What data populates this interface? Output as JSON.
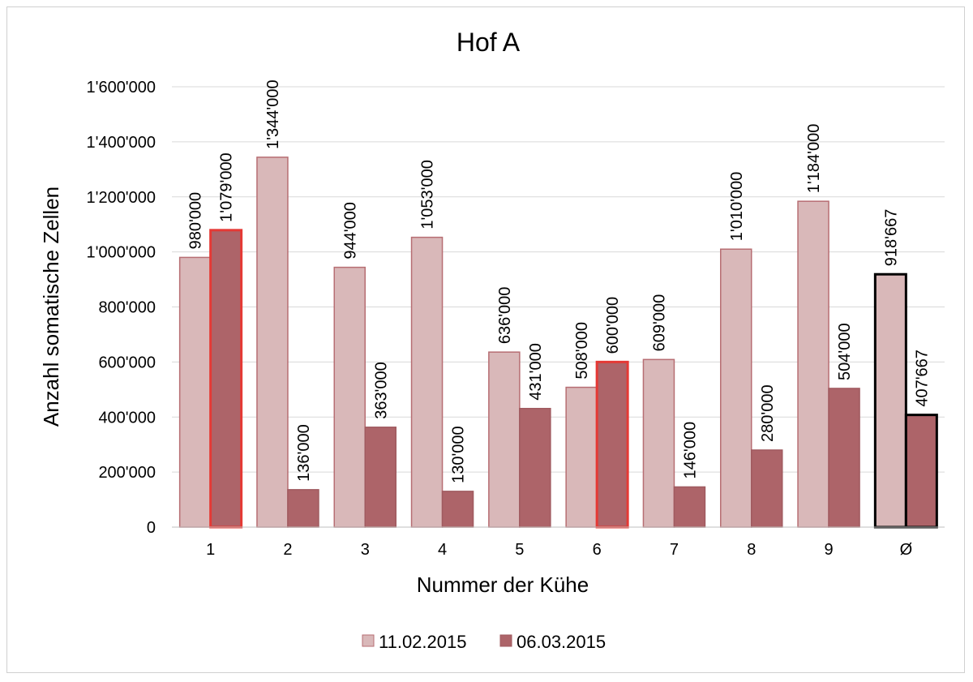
{
  "chart_data": {
    "type": "bar",
    "title": "Hof A",
    "xlabel": "Nummer der Kühe",
    "ylabel": "Anzahl somatische Zellen",
    "categories": [
      "1",
      "2",
      "3",
      "4",
      "5",
      "6",
      "7",
      "8",
      "9",
      "Ø"
    ],
    "series": [
      {
        "name": "11.02.2015",
        "color": "#d9b8b9",
        "values": [
          980000,
          1344000,
          944000,
          1053000,
          636000,
          508000,
          609000,
          1010000,
          1184000,
          918667
        ],
        "labels": [
          "980'000",
          "1'344'000",
          "944'000",
          "1'053'000",
          "636'000",
          "508'000",
          "609'000",
          "1'010'000",
          "1'184'000",
          "918'667"
        ]
      },
      {
        "name": "06.03.2015",
        "color": "#ad6469",
        "values": [
          1079000,
          136000,
          363000,
          130000,
          431000,
          600000,
          146000,
          280000,
          504000,
          407667
        ],
        "labels": [
          "1'079'000",
          "136'000",
          "363'000",
          "130'000",
          "431'000",
          "600'000",
          "146'000",
          "280'000",
          "504'000",
          "407'667"
        ]
      }
    ],
    "highlights": [
      {
        "series": 1,
        "category": "1",
        "outline": "#e53935"
      },
      {
        "series": 1,
        "category": "6",
        "outline": "#e53935"
      },
      {
        "series": 0,
        "category": "Ø",
        "outline": "#000000"
      },
      {
        "series": 1,
        "category": "Ø",
        "outline": "#000000"
      }
    ],
    "ylim": [
      0,
      1600000
    ],
    "yticks": [
      0,
      200000,
      400000,
      600000,
      800000,
      1000000,
      1200000,
      1400000,
      1600000
    ],
    "ytick_labels": [
      "0",
      "200'000",
      "400'000",
      "600'000",
      "800'000",
      "1'000'000",
      "1'200'000",
      "1'400'000",
      "1'600'000"
    ],
    "grid": true,
    "legend": "bottom"
  }
}
